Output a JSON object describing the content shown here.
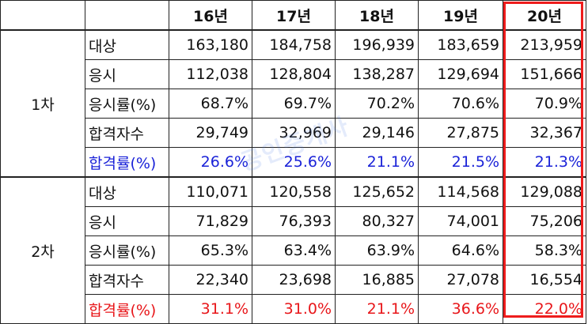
{
  "table": {
    "header": [
      "",
      "",
      "16년",
      "17년",
      "18년",
      "19년",
      "20년"
    ],
    "rounds": [
      {
        "label": "1차",
        "rows": [
          {
            "metric": "대상",
            "values": [
              "163,180",
              "184,758",
              "196,939",
              "183,659",
              "213,959"
            ],
            "color": ""
          },
          {
            "metric": "응시",
            "values": [
              "112,038",
              "128,804",
              "138,287",
              "129,694",
              "151,666"
            ],
            "color": ""
          },
          {
            "metric": "응시률(%)",
            "values": [
              "68.7%",
              "69.7%",
              "70.2%",
              "70.6%",
              "70.9%"
            ],
            "color": ""
          },
          {
            "metric": "합격자수",
            "values": [
              "29,749",
              "32,969",
              "29,146",
              "27,875",
              "32,367"
            ],
            "color": ""
          },
          {
            "metric": "합격률(%)",
            "values": [
              "26.6%",
              "25.6%",
              "21.1%",
              "21.5%",
              "21.3%"
            ],
            "color": "#1a22d8"
          }
        ]
      },
      {
        "label": "2차",
        "rows": [
          {
            "metric": "대상",
            "values": [
              "110,071",
              "120,558",
              "125,652",
              "114,568",
              "129,088"
            ],
            "color": ""
          },
          {
            "metric": "응시",
            "values": [
              "71,829",
              "76,393",
              "80,327",
              "74,001",
              "75,206"
            ],
            "color": ""
          },
          {
            "metric": "응시률(%)",
            "values": [
              "65.3%",
              "63.4%",
              "63.9%",
              "64.6%",
              "58.3%"
            ],
            "color": ""
          },
          {
            "metric": "합격자수",
            "values": [
              "22,340",
              "23,698",
              "16,885",
              "27,078",
              "16,554"
            ],
            "color": ""
          },
          {
            "metric": "합격률(%)",
            "values": [
              "31.1%",
              "31.0%",
              "21.1%",
              "36.6%",
              "22.0%"
            ],
            "color": "#e8161a"
          }
        ]
      }
    ]
  },
  "highlight": {
    "column": "20년",
    "color": "#ee1c1c"
  },
  "watermark": {
    "text": "공인중개사"
  }
}
